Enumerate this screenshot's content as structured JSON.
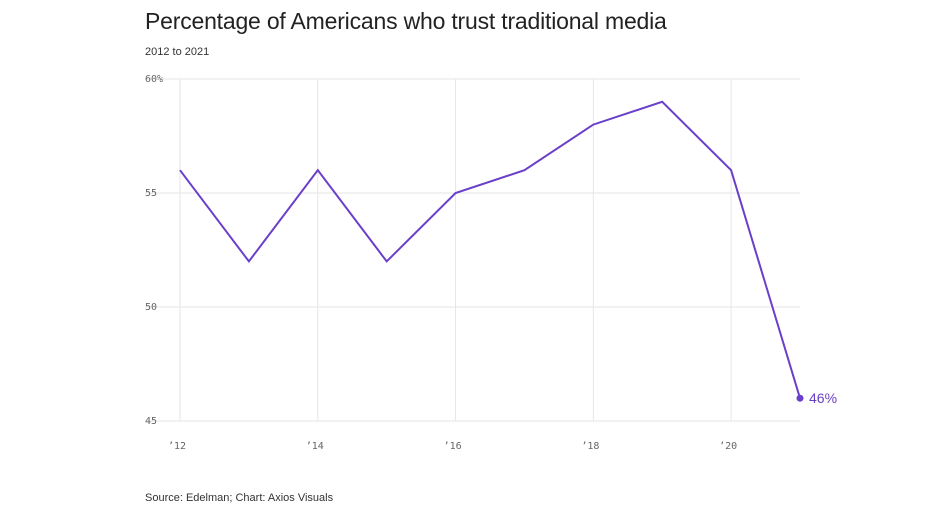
{
  "header": {
    "title": "Percentage of Americans who trust traditional media",
    "subtitle": "2012 to 2021"
  },
  "footer": {
    "source": "Source: Edelman; Chart: Axios Visuals"
  },
  "colors": {
    "line": "#6a3fc9",
    "grid": "#e6e6e6",
    "tick_text": "#666666"
  },
  "chart_data": {
    "type": "line",
    "title": "Percentage of Americans who trust traditional media",
    "subtitle": "2012 to 2021",
    "xlabel": "",
    "ylabel": "",
    "x": [
      2012,
      2013,
      2014,
      2015,
      2016,
      2017,
      2018,
      2019,
      2020,
      2021
    ],
    "series": [
      {
        "values": [
          56,
          52,
          56,
          52,
          55,
          56,
          58,
          59,
          56,
          46
        ]
      }
    ],
    "xlim": [
      2012,
      2021
    ],
    "ylim": [
      45,
      60
    ],
    "x_ticks": [
      2012,
      2014,
      2016,
      2018,
      2020
    ],
    "x_tick_labels": [
      "’12",
      "’14",
      "’16",
      "’18",
      "’20"
    ],
    "y_ticks": [
      45,
      50,
      55,
      60
    ],
    "y_tick_labels": [
      "45",
      "50",
      "55",
      "60%"
    ],
    "grid": true,
    "end_label": "46%"
  }
}
